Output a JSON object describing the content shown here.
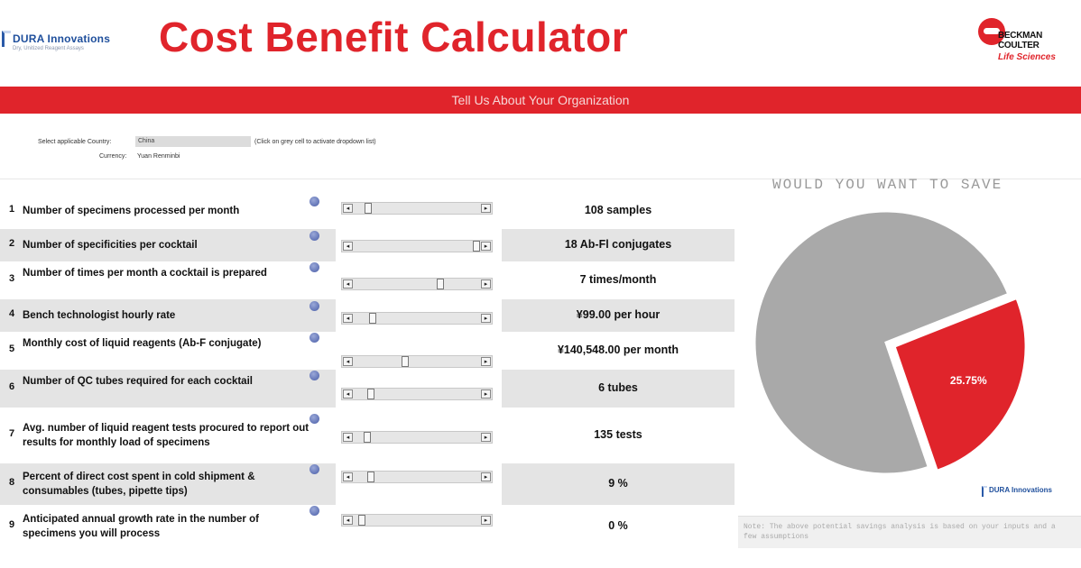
{
  "header": {
    "title": "Cost Benefit Calculator",
    "dura_logo": {
      "top_text": "",
      "name": "DURA Innovations",
      "tagline": "Dry, Unitized Reagent Assays"
    },
    "bc_logo": {
      "line1": "BECKMAN",
      "line2": "COULTER",
      "line3": "Life Sciences",
      "icon": "beckman-coulter-logo-icon"
    }
  },
  "band": {
    "label": "Tell Us About Your Organization"
  },
  "organization": {
    "country_label": "Select applicable Country:",
    "country_value": "China",
    "country_hint": "(Click on grey cell to activate dropdown list)",
    "currency_label": "Currency:",
    "currency_value": "Yuan Renminbi"
  },
  "rows": [
    {
      "num": "1",
      "question": "Number of specimens processed per month",
      "value": "108 samples",
      "thumb": 0.08
    },
    {
      "num": "2",
      "question": "Number of specificities per cocktail",
      "value": "18 Ab-Fl conjugates",
      "thumb": 0.96
    },
    {
      "num": "3",
      "question": "Number of times per month a cocktail is prepared",
      "value": "7 times/month",
      "thumb": 0.67
    },
    {
      "num": "4",
      "question": "Bench technologist hourly rate",
      "value": "¥99.00 per hour",
      "thumb": 0.12
    },
    {
      "num": "5",
      "question": "Monthly cost of liquid reagents (Ab-F conjugate)",
      "value": "¥140,548.00 per month",
      "thumb": 0.38
    },
    {
      "num": "6",
      "question": "Number of QC tubes required for each cocktail",
      "value": "6 tubes",
      "thumb": 0.1
    },
    {
      "num": "7",
      "question": "Avg. number of liquid reagent tests procured to report out results for monthly load of  specimens",
      "value": "135 tests",
      "thumb": 0.07
    },
    {
      "num": "8",
      "question": "Percent of direct cost spent in cold shipment & consumables (tubes, pipette tips)",
      "value": "9 %",
      "thumb": 0.1
    },
    {
      "num": "9",
      "question": "Anticipated annual growth rate in the number of specimens you will process",
      "value": "0 %",
      "thumb": 0.03
    }
  ],
  "right_panel": {
    "heading": "WOULD YOU WANT TO SAVE",
    "pie_label": "25.75%",
    "logo_name": "DURA Innovations",
    "note": "Note: The above potential savings analysis is based on your inputs and a few assumptions"
  },
  "chart_data": {
    "type": "pie",
    "slices": [
      {
        "label": "",
        "value": 74.25,
        "color": "#a9a9a9"
      },
      {
        "label": "25.75%",
        "value": 25.75,
        "color": "#e0242b"
      }
    ],
    "title": "WOULD YOU WANT TO SAVE"
  },
  "colors": {
    "brand_red": "#e0242b",
    "dura_blue": "#1f4f9c",
    "row_alt": "#e4e4e4"
  }
}
